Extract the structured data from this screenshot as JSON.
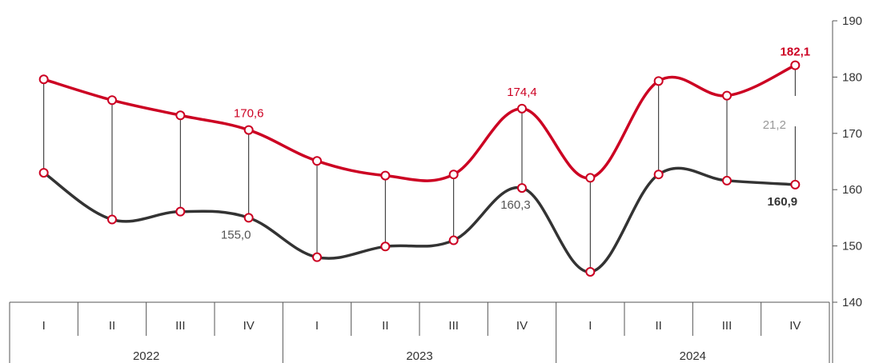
{
  "chart_data": {
    "type": "line",
    "quarters": [
      "I",
      "II",
      "III",
      "IV",
      "I",
      "II",
      "III",
      "IV",
      "I",
      "II",
      "III",
      "IV"
    ],
    "years": [
      "2022",
      "2023",
      "2024"
    ],
    "series": [
      {
        "color": "#cc0022",
        "values": [
          179.6,
          175.9,
          173.2,
          170.6,
          165.1,
          162.5,
          162.7,
          174.4,
          162.1,
          179.3,
          176.7,
          182.1
        ]
      },
      {
        "color": "#333333",
        "values": [
          163.0,
          154.7,
          156.1,
          155.0,
          148.0,
          149.9,
          151.0,
          160.3,
          145.4,
          162.7,
          161.6,
          160.9
        ]
      }
    ],
    "y_axis": {
      "min": 140,
      "max": 190,
      "ticks": [
        "140",
        "150",
        "160",
        "170",
        "180",
        "190"
      ],
      "position": "right"
    },
    "data_labels": [
      {
        "series": 0,
        "index": 3,
        "text": "170,6",
        "color": "#cc0022",
        "bold": false
      },
      {
        "series": 0,
        "index": 7,
        "text": "174,4",
        "color": "#cc0022",
        "bold": false
      },
      {
        "series": 0,
        "index": 11,
        "text": "182,1",
        "color": "#cc0022",
        "bold": true
      },
      {
        "series": 1,
        "index": 3,
        "text": "155,0",
        "color": "#555555",
        "bold": false
      },
      {
        "series": 1,
        "index": 7,
        "text": "160,3",
        "color": "#555555",
        "bold": false
      },
      {
        "series": 1,
        "index": 11,
        "text": "160,9",
        "color": "#333333",
        "bold": true
      }
    ],
    "gap_label": {
      "index": 11,
      "text": "21,2",
      "color": "#999999"
    },
    "grid": false
  }
}
